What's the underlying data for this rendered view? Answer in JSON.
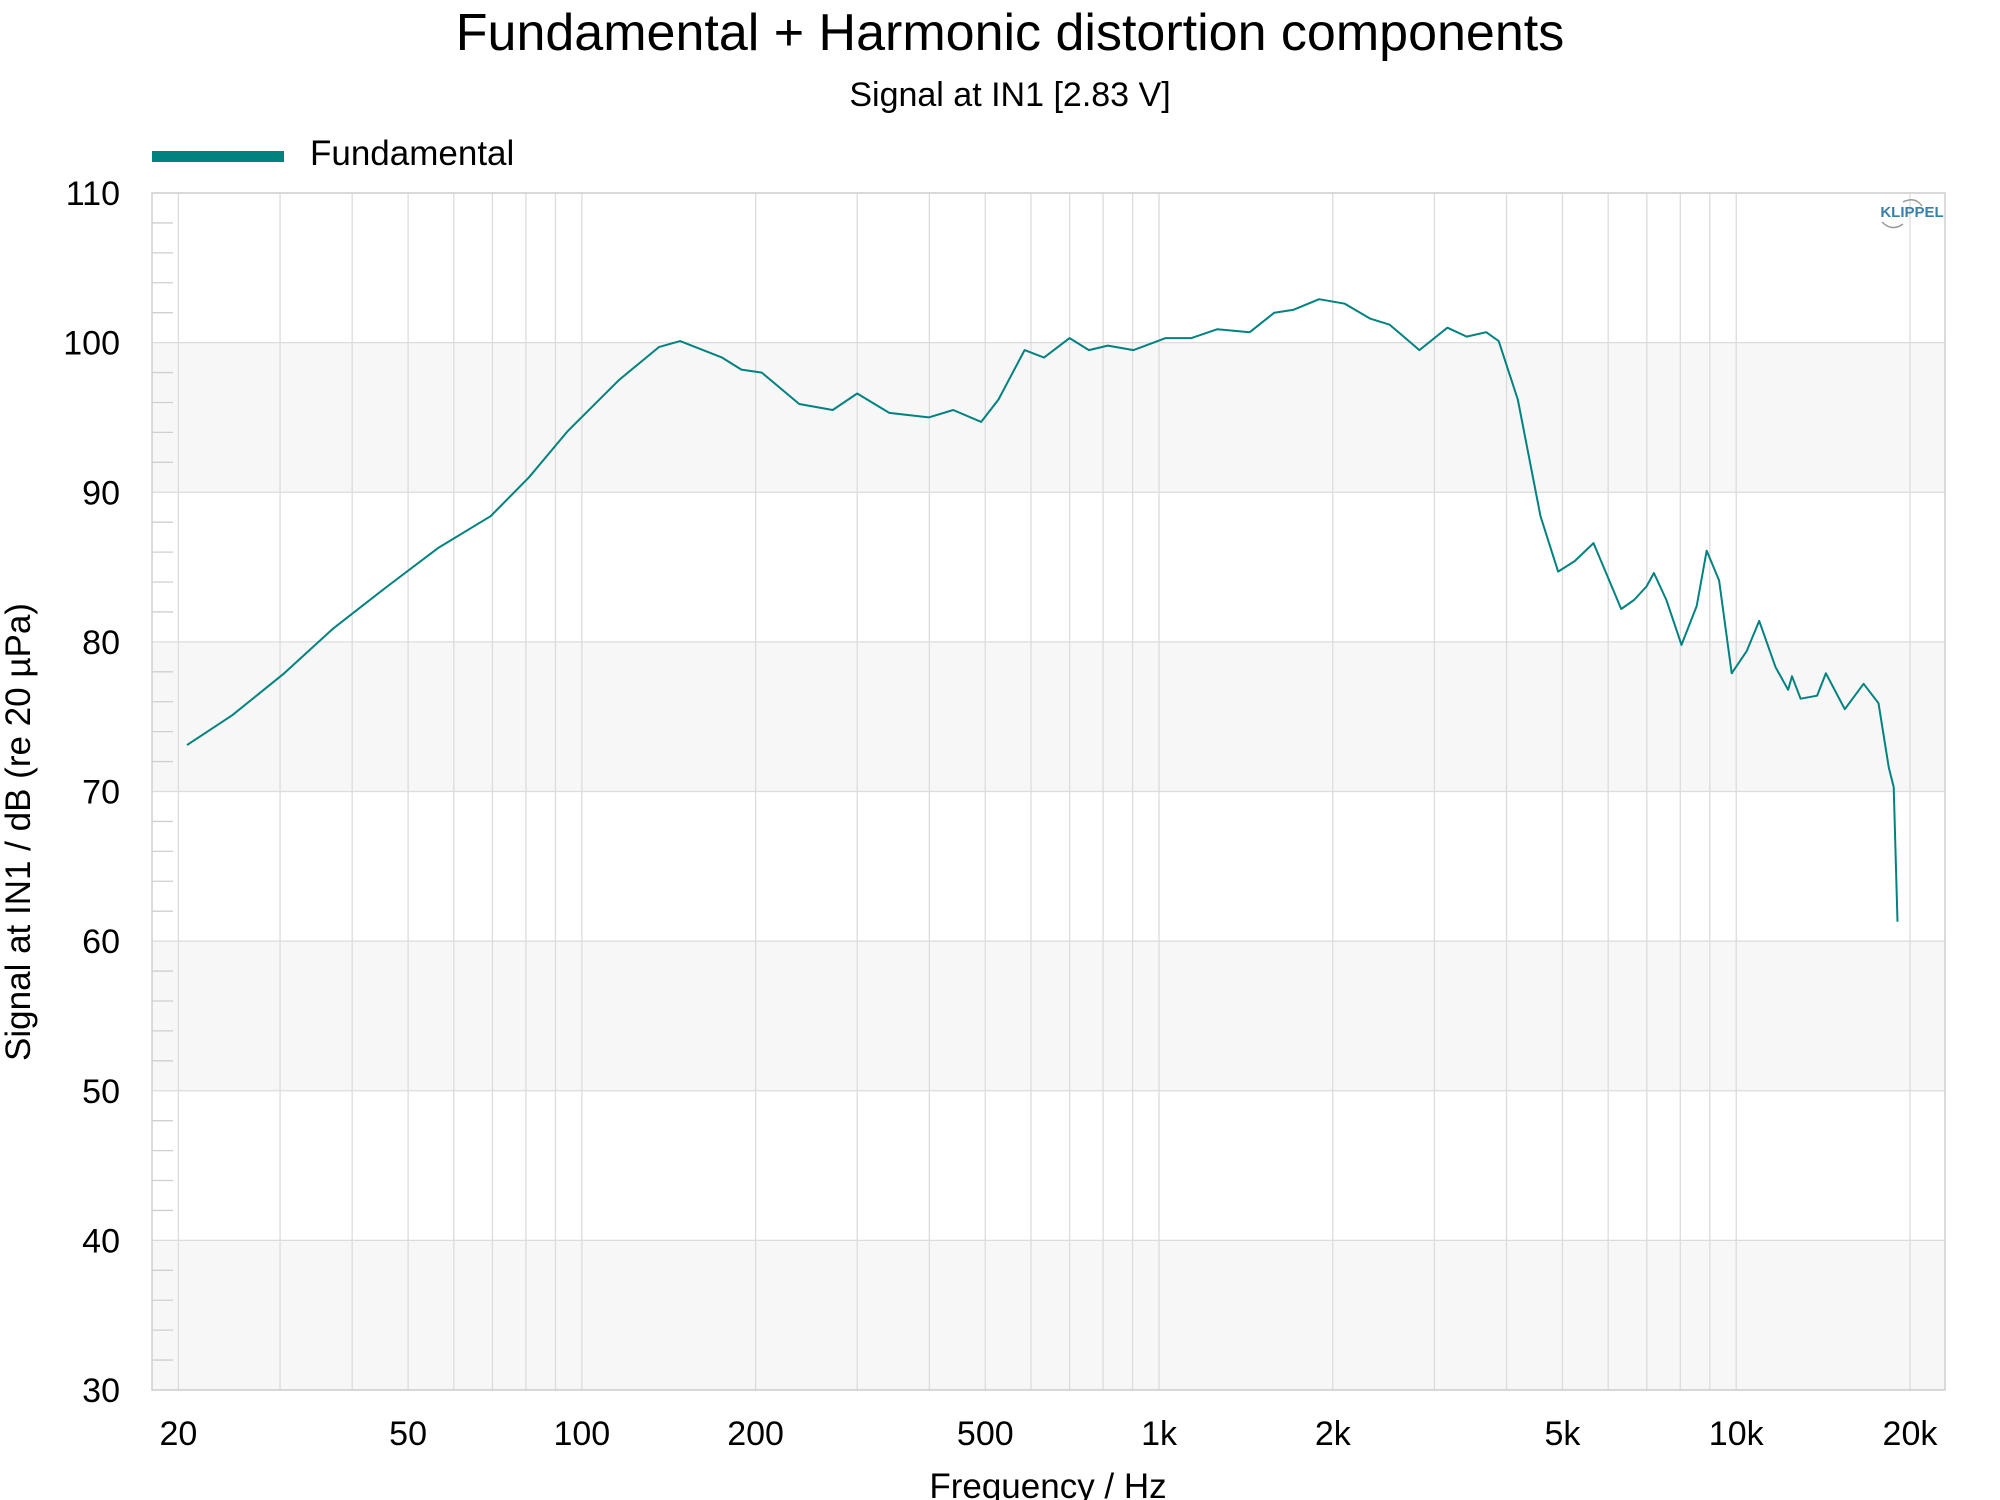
{
  "chart_data": {
    "type": "line",
    "title": "Fundamental + Harmonic distortion components",
    "subtitle": "Signal at IN1 [2.83 V]",
    "xlabel": "Frequency / Hz",
    "ylabel": "Signal at IN1 / dB (re 20 µPa)",
    "xscale": "log",
    "xlim": [
      18,
      23000
    ],
    "ylim": [
      30,
      110
    ],
    "grid": true,
    "legend_position": "top-left",
    "watermark": "KLIPPEL",
    "x_ticks": [
      {
        "value": 20,
        "label": "20"
      },
      {
        "value": 50,
        "label": "50"
      },
      {
        "value": 100,
        "label": "100"
      },
      {
        "value": 200,
        "label": "200"
      },
      {
        "value": 500,
        "label": "500"
      },
      {
        "value": 1000,
        "label": "1k"
      },
      {
        "value": 2000,
        "label": "2k"
      },
      {
        "value": 5000,
        "label": "5k"
      },
      {
        "value": 10000,
        "label": "10k"
      },
      {
        "value": 20000,
        "label": "20k"
      }
    ],
    "y_ticks": [
      {
        "value": 30,
        "label": "30"
      },
      {
        "value": 40,
        "label": "40"
      },
      {
        "value": 50,
        "label": "50"
      },
      {
        "value": 60,
        "label": "60"
      },
      {
        "value": 70,
        "label": "70"
      },
      {
        "value": 80,
        "label": "80"
      },
      {
        "value": 90,
        "label": "90"
      },
      {
        "value": 100,
        "label": "100"
      },
      {
        "value": 110,
        "label": "110"
      }
    ],
    "series": [
      {
        "name": "Fundamental",
        "color": "#00827f",
        "x": [
          20.7,
          24.8,
          30.5,
          37.1,
          46,
          56.5,
          69.5,
          81,
          94.6,
          116,
          136,
          148,
          175,
          189,
          205,
          238,
          272,
          300,
          341,
          399,
          440,
          492,
          527,
          585,
          632,
          700,
          756,
          815,
          903,
          1027,
          1138,
          1262,
          1436,
          1584,
          1711,
          1894,
          2098,
          2324,
          2510,
          2825,
          3160,
          3413,
          3689,
          3877,
          4184,
          4580,
          4913,
          5250,
          5660,
          5950,
          6320,
          6650,
          6990,
          7200,
          7570,
          8040,
          8540,
          8890,
          9340,
          9820,
          10430,
          10960,
          11700,
          12300,
          12490,
          12930,
          13810,
          14300,
          15420,
          16620,
          17640,
          18380,
          18740,
          19030
        ],
        "y": [
          73.1,
          75.1,
          77.9,
          80.9,
          83.7,
          86.3,
          88.4,
          91.0,
          94.1,
          97.5,
          99.7,
          100.1,
          99.0,
          98.2,
          98.0,
          95.9,
          95.5,
          96.6,
          95.3,
          95.0,
          95.5,
          94.7,
          96.2,
          99.5,
          99.0,
          100.3,
          99.5,
          99.8,
          99.5,
          100.3,
          100.3,
          100.9,
          100.7,
          102.0,
          102.2,
          102.9,
          102.6,
          101.6,
          101.2,
          99.5,
          101.0,
          100.4,
          100.7,
          100.1,
          96.2,
          88.4,
          84.7,
          85.4,
          86.6,
          84.6,
          82.2,
          82.8,
          83.7,
          84.6,
          82.8,
          79.8,
          82.4,
          86.1,
          84.1,
          77.9,
          79.4,
          81.4,
          78.3,
          76.8,
          77.7,
          76.2,
          76.4,
          77.9,
          75.5,
          77.2,
          75.9,
          71.6,
          70.3,
          61.3
        ]
      }
    ]
  },
  "colors": {
    "band": "#f7f7f7",
    "grid": "#dcdcdc",
    "line": "#00827f",
    "logo": "#3a7fa8"
  }
}
